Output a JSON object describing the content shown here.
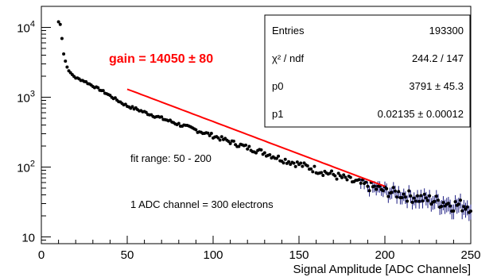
{
  "chart_data": {
    "type": "scatter",
    "title": "",
    "xlabel": "Signal Amplitude [ADC Channels]",
    "ylabel": "",
    "xlim": [
      0,
      250
    ],
    "ylim": [
      8,
      20000
    ],
    "y_scale": "log",
    "x_ticks": [
      0,
      50,
      100,
      150,
      200,
      250
    ],
    "y_ticks": [
      {
        "value": 10,
        "base": "10",
        "exp": ""
      },
      {
        "value": 100,
        "base": "10",
        "exp": "2"
      },
      {
        "value": 1000,
        "base": "10",
        "exp": "3"
      },
      {
        "value": 10000,
        "base": "10",
        "exp": "4"
      }
    ],
    "grid": false,
    "legend": "none",
    "series": [
      {
        "kind": "data",
        "color": "#000000",
        "x": [
          10,
          11,
          12,
          13,
          14,
          15,
          17,
          20,
          25,
          30,
          35,
          40,
          45,
          50,
          55,
          60,
          70,
          80,
          90,
          100,
          110,
          120,
          130,
          140,
          150,
          160,
          170,
          180,
          190,
          200,
          210,
          220,
          230,
          240,
          250
        ],
        "y": [
          12000,
          11000,
          7000,
          4200,
          3300,
          2700,
          2200,
          1900,
          1700,
          1450,
          1250,
          1050,
          880,
          750,
          680,
          610,
          500,
          410,
          340,
          280,
          230,
          190,
          160,
          130,
          110,
          92,
          78,
          64,
          54,
          46,
          41,
          36,
          33,
          29,
          28
        ]
      },
      {
        "kind": "fit",
        "color": "#ff0000",
        "x_range": [
          50,
          200
        ],
        "p0": 3791,
        "p1": 0.02135
      }
    ],
    "annotations": {
      "gain": "gain = 14050 ± 80",
      "fit_range": "fit range: 50 - 200",
      "adc": "1 ADC channel = 300 electrons"
    },
    "stats": [
      {
        "label": "Entries",
        "value": "193300"
      },
      {
        "label": "χ² / ndf",
        "value": "244.2 / 147"
      },
      {
        "label": "p0",
        "value": "3791 ± 45.3"
      },
      {
        "label": "p1",
        "value": "0.02135 ± 0.00012"
      }
    ]
  }
}
